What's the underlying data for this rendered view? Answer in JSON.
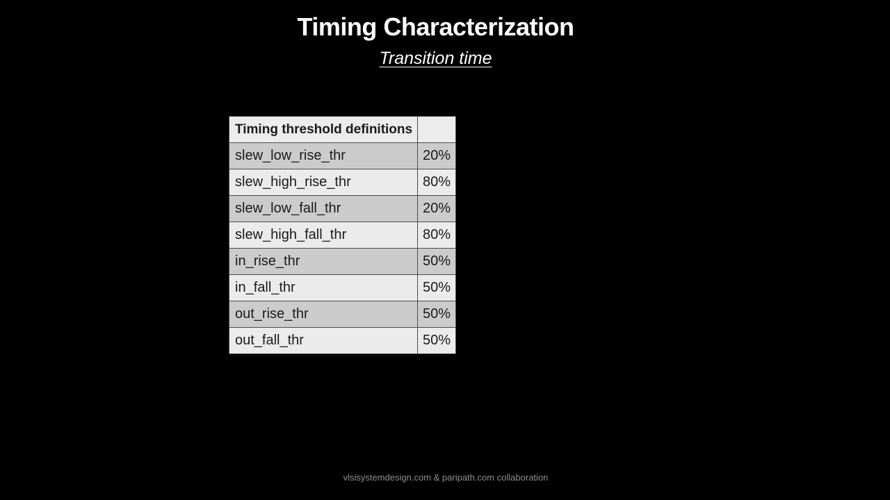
{
  "slide": {
    "title": "Timing Characterization",
    "subtitle": "Transition time"
  },
  "table": {
    "header": "Timing threshold definitions",
    "header_value": "",
    "rows": [
      {
        "name": "slew_low_rise_thr",
        "value": "20%"
      },
      {
        "name": "slew_high_rise_thr",
        "value": "80%"
      },
      {
        "name": "slew_low_fall_thr",
        "value": "20%"
      },
      {
        "name": "slew_high_fall_thr",
        "value": "80%"
      },
      {
        "name": "in_rise_thr",
        "value": "50%"
      },
      {
        "name": "in_fall_thr",
        "value": "50%"
      },
      {
        "name": "out_rise_thr",
        "value": "50%"
      },
      {
        "name": "out_fall_thr",
        "value": "50%"
      }
    ]
  },
  "footer": "vlsisystemdesign.com & paripath.com collaboration"
}
